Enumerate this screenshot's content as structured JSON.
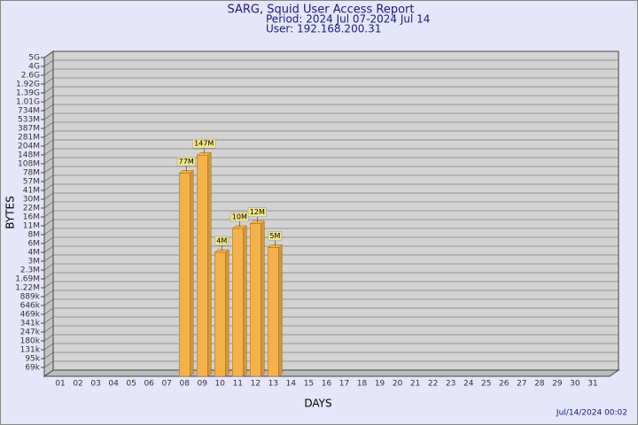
{
  "chart_data": {
    "type": "bar",
    "title": "SARG, Squid User Access Report",
    "subtitle_lines": [
      "Period: 2024 Jul 07-2024 Jul 14",
      "User: 192.168.200.31"
    ],
    "x_label": "DAYS",
    "y_label": "BYTES",
    "footer": "Jul/14/2024 00:02",
    "categories": [
      "01",
      "02",
      "03",
      "04",
      "05",
      "06",
      "07",
      "08",
      "09",
      "10",
      "11",
      "12",
      "13",
      "14",
      "15",
      "16",
      "17",
      "18",
      "19",
      "20",
      "21",
      "22",
      "23",
      "24",
      "25",
      "26",
      "27",
      "28",
      "29",
      "30",
      "31"
    ],
    "values": [
      null,
      null,
      null,
      null,
      null,
      null,
      null,
      77000000,
      147000000,
      4000000,
      10000000,
      12000000,
      5000000,
      null,
      null,
      null,
      null,
      null,
      null,
      null,
      null,
      null,
      null,
      null,
      null,
      null,
      null,
      null,
      null,
      null,
      null
    ],
    "value_labels": [
      null,
      null,
      null,
      null,
      null,
      null,
      null,
      "77M",
      "147M",
      "4M",
      "10M",
      "12M",
      "5M",
      null,
      null,
      null,
      null,
      null,
      null,
      null,
      null,
      null,
      null,
      null,
      null,
      null,
      null,
      null,
      null,
      null,
      null
    ],
    "color": "#f5b24a",
    "log_scale": true,
    "grid": true,
    "ylim": [
      50000,
      5000000000
    ],
    "yticks": [
      {
        "value": 69000,
        "label": "69k"
      },
      {
        "value": 95000,
        "label": "95k"
      },
      {
        "value": 131000,
        "label": "131k"
      },
      {
        "value": 180000,
        "label": "180k"
      },
      {
        "value": 247000,
        "label": "247k"
      },
      {
        "value": 341000,
        "label": "341k"
      },
      {
        "value": 469000,
        "label": "469k"
      },
      {
        "value": 646000,
        "label": "646k"
      },
      {
        "value": 889000,
        "label": "889k"
      },
      {
        "value": 1220000,
        "label": "1.22M"
      },
      {
        "value": 1690000,
        "label": "1.69M"
      },
      {
        "value": 2300000,
        "label": "2.3M"
      },
      {
        "value": 3000000,
        "label": "3M"
      },
      {
        "value": 4000000,
        "label": "4M"
      },
      {
        "value": 6000000,
        "label": "6M"
      },
      {
        "value": 8000000,
        "label": "8M"
      },
      {
        "value": 11000000,
        "label": "11M"
      },
      {
        "value": 16000000,
        "label": "16M"
      },
      {
        "value": 22000000,
        "label": "22M"
      },
      {
        "value": 30000000,
        "label": "30M"
      },
      {
        "value": 41000000,
        "label": "41M"
      },
      {
        "value": 57000000,
        "label": "57M"
      },
      {
        "value": 78000000,
        "label": "78M"
      },
      {
        "value": 108000000,
        "label": "108M"
      },
      {
        "value": 148000000,
        "label": "148M"
      },
      {
        "value": 204000000,
        "label": "204M"
      },
      {
        "value": 281000000,
        "label": "281M"
      },
      {
        "value": 387000000,
        "label": "387M"
      },
      {
        "value": 533000000,
        "label": "533M"
      },
      {
        "value": 734000000,
        "label": "734M"
      },
      {
        "value": 1010000000,
        "label": "1.01G"
      },
      {
        "value": 1390000000,
        "label": "1.39G"
      },
      {
        "value": 1920000000,
        "label": "1.92G"
      },
      {
        "value": 2600000000,
        "label": "2.6G"
      },
      {
        "value": 4000000000,
        "label": "4G"
      },
      {
        "value": 5000000000,
        "label": "5G"
      }
    ]
  }
}
